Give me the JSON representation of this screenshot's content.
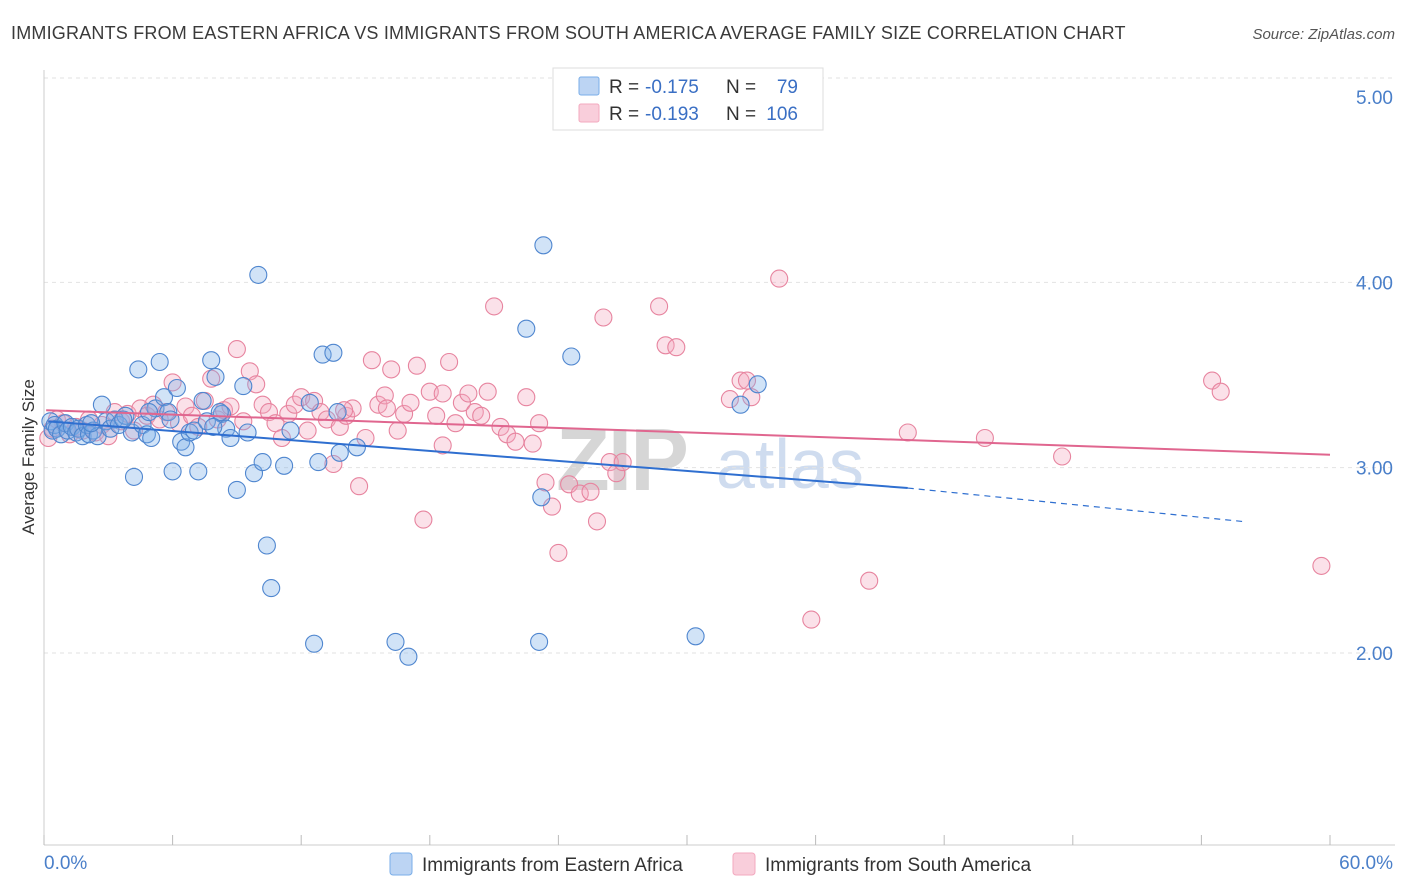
{
  "chart_data": {
    "type": "scatter",
    "title": "IMMIGRANTS FROM EASTERN AFRICA VS IMMIGRANTS FROM SOUTH AMERICA AVERAGE FAMILY SIZE CORRELATION CHART",
    "source": "Source: ZipAtlas.com",
    "xlabel": "",
    "ylabel": "Average Family Size",
    "xlim": [
      0,
      60
    ],
    "ylim": [
      1,
      5.1
    ],
    "x_tick_labels": {
      "min": "0.0%",
      "max": "60.0%"
    },
    "y_ticks": [
      {
        "value": 2,
        "label": "2.00"
      },
      {
        "value": 3,
        "label": "3.00"
      },
      {
        "value": 4,
        "label": "4.00"
      },
      {
        "value": 5,
        "label": "5.00"
      }
    ],
    "grid": true,
    "legend_position": "top-center",
    "watermark": {
      "zip": "ZIP",
      "atlas": "atlas"
    },
    "series": [
      {
        "name": "Immigrants from Eastern Africa",
        "color": "#7aaee8",
        "edge": "#4f86cf",
        "line_color": "#2f6fd0",
        "r_label": "R =",
        "r_value": "-0.175",
        "n_label": "N =",
        "n_value": "79",
        "trend": {
          "x1": 0.2,
          "y1": 3.25,
          "x2": 40.3,
          "y2": 2.89,
          "dash_x2": 55.9,
          "dash_y2": 2.71
        },
        "points": [
          [
            0.3,
            3.25
          ],
          [
            0.4,
            3.2
          ],
          [
            0.5,
            3.23
          ],
          [
            0.6,
            3.21
          ],
          [
            0.8,
            3.18
          ],
          [
            1.0,
            3.24
          ],
          [
            1.1,
            3.2
          ],
          [
            1.3,
            3.22
          ],
          [
            1.5,
            3.19
          ],
          [
            1.6,
            3.21
          ],
          [
            1.8,
            3.17
          ],
          [
            2.0,
            3.23
          ],
          [
            2.1,
            3.18
          ],
          [
            2.3,
            3.2
          ],
          [
            2.5,
            3.17
          ],
          [
            2.7,
            3.34
          ],
          [
            2.9,
            3.25
          ],
          [
            3.1,
            3.21
          ],
          [
            3.3,
            3.26
          ],
          [
            3.5,
            3.23
          ],
          [
            3.8,
            3.28
          ],
          [
            4.1,
            3.19
          ],
          [
            4.2,
            2.95
          ],
          [
            4.4,
            3.53
          ],
          [
            4.6,
            3.23
          ],
          [
            4.8,
            3.18
          ],
          [
            5.0,
            3.16
          ],
          [
            5.2,
            3.32
          ],
          [
            5.4,
            3.57
          ],
          [
            5.6,
            3.38
          ],
          [
            5.8,
            3.3
          ],
          [
            6.0,
            2.98
          ],
          [
            6.2,
            3.43
          ],
          [
            6.4,
            3.14
          ],
          [
            6.6,
            3.11
          ],
          [
            6.8,
            3.19
          ],
          [
            7.0,
            3.2
          ],
          [
            7.2,
            2.98
          ],
          [
            7.4,
            3.36
          ],
          [
            7.6,
            3.25
          ],
          [
            7.8,
            3.58
          ],
          [
            8.0,
            3.49
          ],
          [
            8.3,
            3.29
          ],
          [
            8.5,
            3.21
          ],
          [
            8.7,
            3.16
          ],
          [
            9.0,
            2.88
          ],
          [
            9.3,
            3.44
          ],
          [
            9.5,
            3.19
          ],
          [
            9.8,
            2.97
          ],
          [
            10.0,
            4.04
          ],
          [
            10.2,
            3.03
          ],
          [
            10.4,
            2.58
          ],
          [
            10.6,
            2.35
          ],
          [
            11.2,
            3.01
          ],
          [
            12.4,
            3.35
          ],
          [
            12.6,
            2.05
          ],
          [
            12.8,
            3.03
          ],
          [
            13.0,
            3.61
          ],
          [
            13.5,
            3.62
          ],
          [
            13.7,
            3.3
          ],
          [
            14.6,
            3.11
          ],
          [
            16.4,
            2.06
          ],
          [
            17.0,
            1.98
          ],
          [
            22.5,
            3.75
          ],
          [
            23.1,
            2.06
          ],
          [
            23.2,
            2.84
          ],
          [
            23.3,
            4.2
          ],
          [
            24.6,
            3.6
          ],
          [
            30.4,
            2.09
          ],
          [
            32.5,
            3.34
          ],
          [
            33.3,
            3.45
          ],
          [
            13.8,
            3.08
          ],
          [
            3.7,
            3.26
          ],
          [
            2.2,
            3.24
          ],
          [
            8.2,
            3.3
          ],
          [
            11.5,
            3.2
          ],
          [
            5.9,
            3.26
          ],
          [
            7.9,
            3.22
          ],
          [
            4.9,
            3.3
          ]
        ]
      },
      {
        "name": "Immigrants from South America",
        "color": "#f3a9bf",
        "edge": "#e7849f",
        "line_color": "#e0668f",
        "r_label": "R =",
        "r_value": "-0.193",
        "n_label": "N =",
        "n_value": "106",
        "trend": {
          "x1": 0.1,
          "y1": 3.31,
          "x2": 60.0,
          "y2": 3.07
        },
        "points": [
          [
            0.2,
            3.16
          ],
          [
            0.4,
            3.21
          ],
          [
            0.6,
            3.26
          ],
          [
            0.9,
            3.24
          ],
          [
            1.2,
            3.18
          ],
          [
            1.5,
            3.22
          ],
          [
            1.8,
            3.2
          ],
          [
            2.1,
            3.26
          ],
          [
            2.4,
            3.19
          ],
          [
            2.7,
            3.23
          ],
          [
            3.0,
            3.17
          ],
          [
            3.3,
            3.3
          ],
          [
            3.6,
            3.25
          ],
          [
            3.9,
            3.29
          ],
          [
            4.2,
            3.2
          ],
          [
            4.5,
            3.32
          ],
          [
            4.8,
            3.28
          ],
          [
            5.1,
            3.34
          ],
          [
            5.4,
            3.26
          ],
          [
            5.7,
            3.3
          ],
          [
            6.0,
            3.46
          ],
          [
            6.3,
            3.24
          ],
          [
            6.6,
            3.33
          ],
          [
            6.9,
            3.28
          ],
          [
            7.2,
            3.22
          ],
          [
            7.5,
            3.36
          ],
          [
            7.8,
            3.48
          ],
          [
            8.1,
            3.26
          ],
          [
            8.4,
            3.31
          ],
          [
            8.7,
            3.33
          ],
          [
            9.0,
            3.64
          ],
          [
            9.3,
            3.25
          ],
          [
            9.6,
            3.52
          ],
          [
            9.9,
            3.45
          ],
          [
            10.2,
            3.34
          ],
          [
            10.5,
            3.3
          ],
          [
            10.8,
            3.24
          ],
          [
            11.1,
            3.16
          ],
          [
            11.4,
            3.29
          ],
          [
            11.7,
            3.34
          ],
          [
            12.0,
            3.38
          ],
          [
            12.3,
            3.2
          ],
          [
            12.6,
            3.36
          ],
          [
            12.9,
            3.3
          ],
          [
            13.2,
            3.26
          ],
          [
            13.5,
            3.02
          ],
          [
            13.8,
            3.22
          ],
          [
            14.1,
            3.28
          ],
          [
            14.4,
            3.32
          ],
          [
            14.7,
            2.9
          ],
          [
            15.0,
            3.16
          ],
          [
            15.3,
            3.58
          ],
          [
            15.6,
            3.34
          ],
          [
            15.9,
            3.39
          ],
          [
            16.2,
            3.53
          ],
          [
            16.5,
            3.2
          ],
          [
            16.8,
            3.29
          ],
          [
            17.1,
            3.35
          ],
          [
            17.4,
            3.55
          ],
          [
            17.7,
            2.72
          ],
          [
            18.0,
            3.41
          ],
          [
            18.3,
            3.28
          ],
          [
            18.6,
            3.4
          ],
          [
            18.9,
            3.57
          ],
          [
            19.2,
            3.24
          ],
          [
            19.5,
            3.35
          ],
          [
            19.8,
            3.4
          ],
          [
            20.1,
            3.3
          ],
          [
            20.4,
            3.28
          ],
          [
            20.7,
            3.41
          ],
          [
            21.0,
            3.87
          ],
          [
            21.3,
            3.22
          ],
          [
            21.6,
            3.18
          ],
          [
            22.0,
            3.14
          ],
          [
            22.5,
            3.38
          ],
          [
            22.8,
            3.13
          ],
          [
            23.1,
            3.24
          ],
          [
            23.4,
            2.92
          ],
          [
            23.7,
            2.79
          ],
          [
            24.0,
            2.54
          ],
          [
            24.5,
            2.91
          ],
          [
            25.0,
            2.86
          ],
          [
            25.5,
            2.87
          ],
          [
            25.8,
            2.71
          ],
          [
            26.1,
            3.81
          ],
          [
            26.4,
            3.03
          ],
          [
            26.7,
            2.97
          ],
          [
            27.0,
            3.03
          ],
          [
            28.7,
            3.87
          ],
          [
            29.0,
            3.66
          ],
          [
            29.5,
            3.65
          ],
          [
            32.0,
            3.37
          ],
          [
            32.5,
            3.47
          ],
          [
            32.8,
            3.47
          ],
          [
            33.0,
            3.38
          ],
          [
            34.3,
            4.02
          ],
          [
            35.8,
            2.18
          ],
          [
            38.5,
            2.39
          ],
          [
            40.3,
            3.19
          ],
          [
            43.9,
            3.16
          ],
          [
            47.5,
            3.06
          ],
          [
            54.5,
            3.47
          ],
          [
            54.9,
            3.41
          ],
          [
            59.6,
            2.47
          ],
          [
            14.0,
            3.31
          ],
          [
            16.0,
            3.32
          ],
          [
            18.6,
            3.12
          ]
        ]
      }
    ],
    "legend": {
      "entries": [
        {
          "label": "Immigrants from Eastern Africa"
        },
        {
          "label": "Immigrants from South America"
        }
      ]
    }
  }
}
